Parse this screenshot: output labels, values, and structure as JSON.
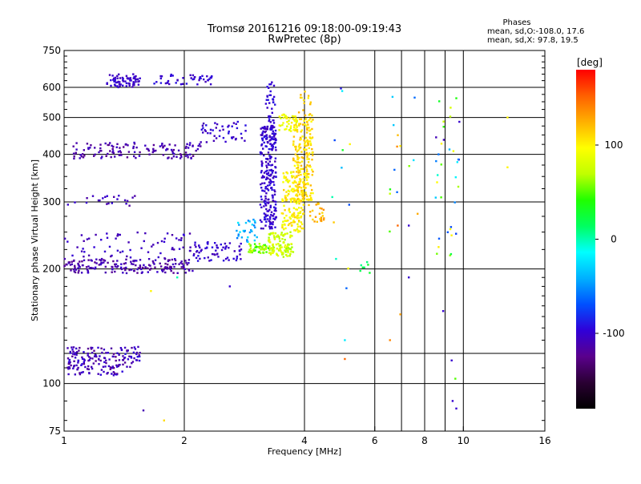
{
  "chart_data": {
    "type": "scatter",
    "title_line1": "Tromsø 20161216 09:18:00-09:19:43",
    "title_line2": "RwPretec (8p)",
    "stats": {
      "heading": "Phases",
      "line1": "mean, sd,O:-108.0, 17.6",
      "line2": "mean, sd,X:  97.8, 19.5"
    },
    "xlabel": "Frequency [MHz]",
    "ylabel": "Stationary phase Virtual Height [km]",
    "x_scale": "log",
    "y_scale": "log",
    "xlim": [
      1,
      16
    ],
    "ylim": [
      75,
      750
    ],
    "x_ticks": [
      {
        "value": 1,
        "label": "1"
      },
      {
        "value": 2,
        "label": "2"
      },
      {
        "value": 4,
        "label": "4"
      },
      {
        "value": 6,
        "label": "6"
      },
      {
        "value": 8,
        "label": "8"
      },
      {
        "value": 10,
        "label": "10"
      },
      {
        "value": 16,
        "label": "16"
      }
    ],
    "x_extra_gridlines": [
      7.0,
      9.0
    ],
    "y_ticks": [
      {
        "value": 75,
        "label": "75"
      },
      {
        "value": 100,
        "label": "100"
      },
      {
        "value": 200,
        "label": "200"
      },
      {
        "value": 300,
        "label": "300"
      },
      {
        "value": 400,
        "label": "400"
      },
      {
        "value": 500,
        "label": "500"
      },
      {
        "value": 600,
        "label": "600"
      },
      {
        "value": 750,
        "label": "750"
      }
    ],
    "y_gridlines": [
      100,
      120,
      200,
      300,
      400,
      500,
      600
    ],
    "colorbar": {
      "label": "[deg]",
      "range": [
        -180,
        180
      ],
      "ticks": [
        {
          "value": 100,
          "label": "100"
        },
        {
          "value": 0,
          "label": "0"
        },
        {
          "value": -100,
          "label": "-100"
        }
      ],
      "stops": [
        "#000000",
        "#2a0033",
        "#5a008c",
        "#3000d8",
        "#0050ff",
        "#00b0ff",
        "#00ffff",
        "#00ff60",
        "#20ff00",
        "#c0ff00",
        "#ffff00",
        "#ffb000",
        "#ff6000",
        "#ff0000"
      ]
    },
    "clusters": [
      {
        "x": [
          1.28,
          1.55
        ],
        "y": [
          600,
          650
        ],
        "phase": [
          -110,
          -95
        ],
        "n": 70,
        "shape": "lin"
      },
      {
        "x": [
          1.68,
          2.35
        ],
        "y": [
          610,
          650
        ],
        "phase": [
          -110,
          -90
        ],
        "n": 45,
        "shape": "lin"
      },
      {
        "x": [
          1.05,
          2.2
        ],
        "y": [
          390,
          430
        ],
        "phase": [
          -125,
          -100
        ],
        "n": 130,
        "shape": "lin"
      },
      {
        "x": [
          2.2,
          2.9
        ],
        "y": [
          430,
          490
        ],
        "phase": [
          -110,
          -90
        ],
        "n": 45,
        "shape": "lin"
      },
      {
        "x": [
          1.0,
          2.1
        ],
        "y": [
          195,
          212
        ],
        "phase": [
          -125,
          -100
        ],
        "n": 170,
        "shape": "lin"
      },
      {
        "x": [
          1.0,
          2.3
        ],
        "y": [
          212,
          250
        ],
        "phase": [
          -115,
          -95
        ],
        "n": 75,
        "shape": "lin"
      },
      {
        "x": [
          2.1,
          2.8
        ],
        "y": [
          210,
          235
        ],
        "phase": [
          -110,
          -90
        ],
        "n": 60,
        "shape": "lin"
      },
      {
        "x": [
          1.0,
          1.55
        ],
        "y": [
          293,
          312
        ],
        "phase": [
          -120,
          -95
        ],
        "n": 22,
        "shape": "lin"
      },
      {
        "x": [
          2.7,
          3.05
        ],
        "y": [
          235,
          270
        ],
        "phase": [
          -60,
          -20
        ],
        "n": 30,
        "shape": "lin"
      },
      {
        "x": [
          2.9,
          3.25
        ],
        "y": [
          220,
          233
        ],
        "phase": [
          40,
          80
        ],
        "n": 50,
        "shape": "lin"
      },
      {
        "x": [
          3.1,
          3.4
        ],
        "y": [
          255,
          480
        ],
        "phase": [
          -110,
          -90
        ],
        "n": 260,
        "shape": "lin"
      },
      {
        "x": [
          3.2,
          3.38
        ],
        "y": [
          480,
          620
        ],
        "phase": [
          -105,
          -90
        ],
        "n": 35,
        "shape": "lin"
      },
      {
        "x": [
          3.25,
          3.75
        ],
        "y": [
          215,
          250
        ],
        "phase": [
          60,
          90
        ],
        "n": 110,
        "shape": "lin"
      },
      {
        "x": [
          3.5,
          4.0
        ],
        "y": [
          250,
          360
        ],
        "phase": [
          85,
          115
        ],
        "n": 150,
        "shape": "lin"
      },
      {
        "x": [
          3.75,
          4.2
        ],
        "y": [
          300,
          510
        ],
        "phase": [
          95,
          125
        ],
        "n": 220,
        "shape": "lin"
      },
      {
        "x": [
          3.45,
          3.85
        ],
        "y": [
          460,
          510
        ],
        "phase": [
          75,
          105
        ],
        "n": 40,
        "shape": "lin"
      },
      {
        "x": [
          3.85,
          4.15
        ],
        "y": [
          510,
          600
        ],
        "phase": [
          100,
          125
        ],
        "n": 14,
        "shape": "lin"
      },
      {
        "x": [
          4.1,
          4.5
        ],
        "y": [
          265,
          300
        ],
        "phase": [
          110,
          140
        ],
        "n": 25,
        "shape": "lin"
      },
      {
        "x": [
          1.02,
          1.4
        ],
        "y": [
          105,
          125
        ],
        "phase": [
          -125,
          -95
        ],
        "n": 140,
        "shape": "lin"
      },
      {
        "x": [
          1.4,
          1.55
        ],
        "y": [
          110,
          126
        ],
        "phase": [
          -120,
          -90
        ],
        "n": 35,
        "shape": "lin"
      },
      {
        "x": [
          5.5,
          5.9
        ],
        "y": [
          195,
          210
        ],
        "phase": [
          0,
          30
        ],
        "n": 7,
        "shape": "lin"
      },
      {
        "x": [
          8.5,
          9.8
        ],
        "y": [
          200,
          600
        ],
        "phase": [
          -110,
          120
        ],
        "n": 35,
        "shape": "lin"
      },
      {
        "x": [
          6.5,
          7.7
        ],
        "y": [
          250,
          650
        ],
        "phase": [
          -100,
          140
        ],
        "n": 14,
        "shape": "lin"
      },
      {
        "x": [
          4.5,
          5.2
        ],
        "y": [
          140,
          600
        ],
        "phase": [
          -100,
          130
        ],
        "n": 12,
        "shape": "lin"
      }
    ],
    "isolated_points": [
      {
        "x": 1.65,
        "y": 175,
        "phase": 100
      },
      {
        "x": 1.58,
        "y": 85,
        "phase": -110
      },
      {
        "x": 1.78,
        "y": 80,
        "phase": 110
      },
      {
        "x": 1.92,
        "y": 190,
        "phase": 0
      },
      {
        "x": 2.6,
        "y": 180,
        "phase": -100
      },
      {
        "x": 5.05,
        "y": 130,
        "phase": -20
      },
      {
        "x": 5.05,
        "y": 116,
        "phase": 150
      },
      {
        "x": 6.55,
        "y": 130,
        "phase": 140
      },
      {
        "x": 6.95,
        "y": 152,
        "phase": 130
      },
      {
        "x": 6.85,
        "y": 260,
        "phase": 150
      },
      {
        "x": 7.3,
        "y": 190,
        "phase": -100
      },
      {
        "x": 7.3,
        "y": 260,
        "phase": -100
      },
      {
        "x": 9.4,
        "y": 90,
        "phase": -100
      },
      {
        "x": 9.6,
        "y": 86,
        "phase": -100
      },
      {
        "x": 9.55,
        "y": 103,
        "phase": 50
      },
      {
        "x": 12.9,
        "y": 500,
        "phase": 100
      },
      {
        "x": 12.9,
        "y": 370,
        "phase": 100
      },
      {
        "x": 8.9,
        "y": 155,
        "phase": -100
      },
      {
        "x": 9.35,
        "y": 115,
        "phase": -100
      }
    ]
  }
}
